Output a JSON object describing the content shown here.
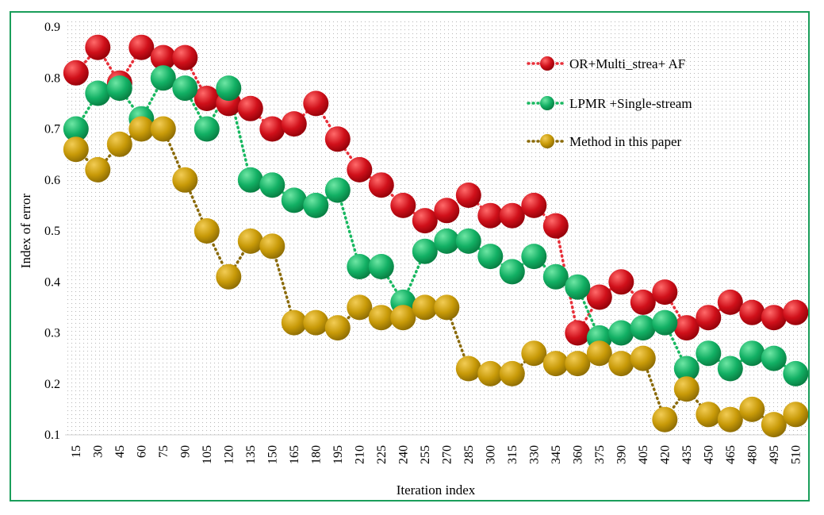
{
  "chart_data": {
    "type": "line",
    "title": "",
    "xlabel": "Iteration index",
    "ylabel": "Index of error",
    "x": [
      15,
      30,
      45,
      60,
      75,
      90,
      105,
      120,
      135,
      150,
      165,
      180,
      195,
      210,
      225,
      240,
      255,
      270,
      285,
      300,
      315,
      330,
      345,
      360,
      375,
      390,
      405,
      420,
      435,
      450,
      465,
      480,
      495,
      510
    ],
    "x_tick_labels": [
      "15",
      "30",
      "45",
      "60",
      "75",
      "90",
      "105",
      "120",
      "135",
      "150",
      "165",
      "180",
      "195",
      "210",
      "225",
      "240",
      "255",
      "270",
      "285",
      "300",
      "315",
      "330",
      "345",
      "360",
      "375",
      "390",
      "405",
      "420",
      "435",
      "450",
      "465",
      "480",
      "495",
      "510"
    ],
    "ylim": [
      0.1,
      0.9
    ],
    "y_ticks": [
      0.1,
      0.2,
      0.3,
      0.4,
      0.5,
      0.6,
      0.7,
      0.8,
      0.9
    ],
    "y_tick_labels": [
      "0.1",
      "0.2",
      "0.3",
      "0.4",
      "0.5",
      "0.6",
      "0.7",
      "0.8",
      "0.9"
    ],
    "grid": "dotted background",
    "legend_position": "top-right",
    "series": [
      {
        "name": "OR+Multi_strea+ AF",
        "color": "#d0101a",
        "line_color": "#e8303a",
        "values": [
          0.81,
          0.86,
          0.79,
          0.86,
          0.84,
          0.84,
          0.76,
          0.75,
          0.74,
          0.7,
          0.71,
          0.75,
          0.68,
          0.62,
          0.59,
          0.55,
          0.52,
          0.54,
          0.57,
          0.53,
          0.53,
          0.55,
          0.51,
          0.3,
          0.37,
          0.4,
          0.36,
          0.38,
          0.31,
          0.33,
          0.36,
          0.34,
          0.33,
          0.34
        ]
      },
      {
        "name": "LPMR +Single-stream",
        "color": "#12b064",
        "line_color": "#18b860",
        "values": [
          0.7,
          0.77,
          0.78,
          0.72,
          0.8,
          0.78,
          0.7,
          0.78,
          0.6,
          0.59,
          0.56,
          0.55,
          0.58,
          0.43,
          0.43,
          0.36,
          0.46,
          0.48,
          0.48,
          0.45,
          0.42,
          0.45,
          0.41,
          0.39,
          0.29,
          0.3,
          0.31,
          0.32,
          0.23,
          0.26,
          0.23,
          0.26,
          0.25,
          0.22
        ]
      },
      {
        "name": "Method in this paper",
        "color": "#c89a08",
        "line_color": "#8a6a08",
        "values": [
          0.66,
          0.62,
          0.67,
          0.7,
          0.7,
          0.6,
          0.5,
          0.41,
          0.48,
          0.47,
          0.32,
          0.32,
          0.31,
          0.35,
          0.33,
          0.33,
          0.35,
          0.35,
          0.23,
          0.22,
          0.22,
          0.26,
          0.24,
          0.24,
          0.26,
          0.24,
          0.25,
          0.13,
          0.19,
          0.14,
          0.13,
          0.15,
          0.12,
          0.14
        ]
      }
    ]
  }
}
